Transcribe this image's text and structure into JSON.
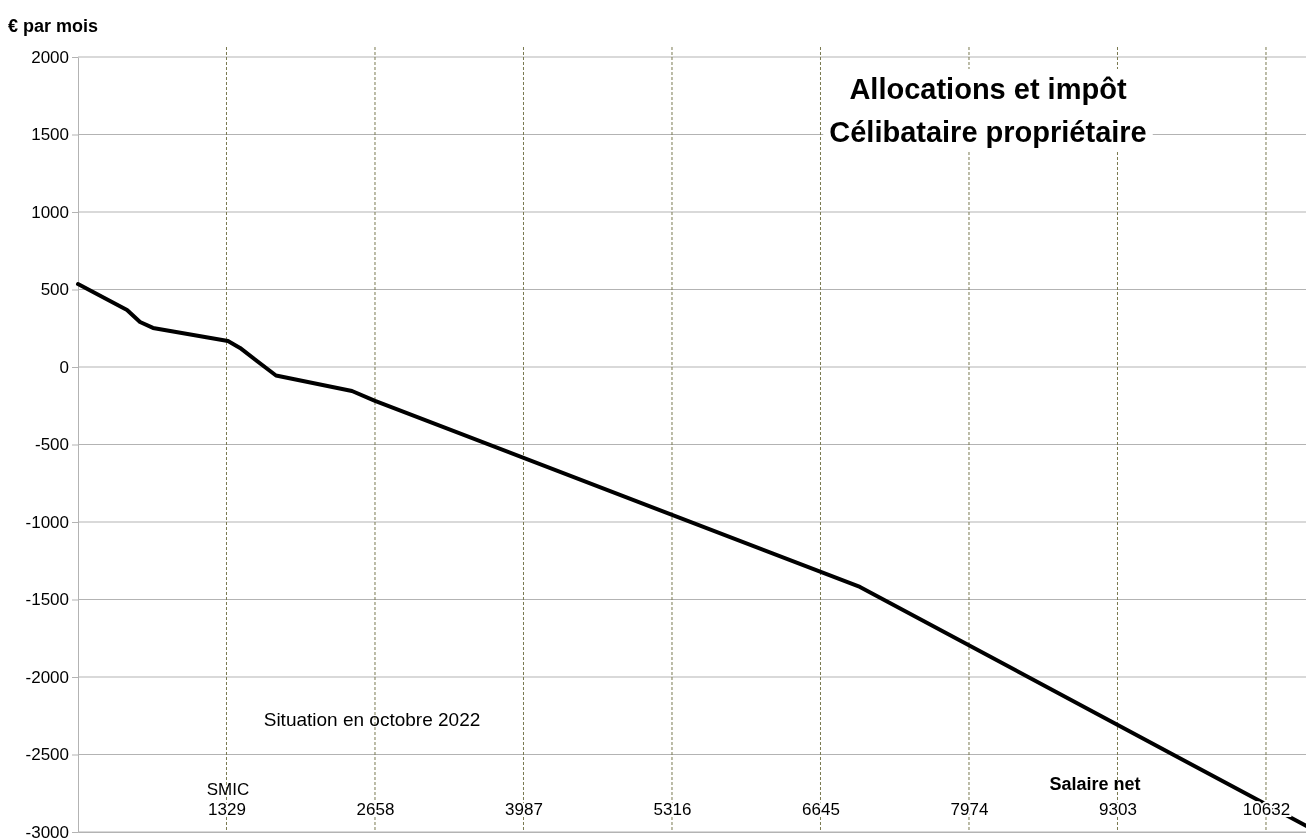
{
  "chart_data": {
    "type": "line",
    "title": "Allocations et impôt",
    "subtitle": "Célibataire propriétaire",
    "xlabel": "Salaire net",
    "ylabel": "€ par mois",
    "annotations": [
      "SMIC",
      "Situation en octobre 2022"
    ],
    "x": [
      0,
      439,
      555,
      671,
      1342,
      1450,
      1772,
      2452,
      2658,
      6998,
      10990
    ],
    "series": [
      {
        "color": "#000000",
        "values": [
          535,
          368,
          290,
          252,
          168,
          123,
          -55,
          -155,
          -219,
          -1419,
          -2960
        ]
      }
    ],
    "xlim": [
      0,
      10990
    ],
    "xticks": [
      1329,
      2658,
      3987,
      5316,
      6645,
      7974,
      9303,
      10632
    ],
    "ylim": [
      -3000,
      2000
    ],
    "yticks": [
      -3000,
      -2500,
      -2000,
      -1500,
      -1000,
      -500,
      0,
      500,
      1000,
      1500,
      2000
    ],
    "grid": true,
    "marker": "none",
    "line_style": "solid"
  }
}
